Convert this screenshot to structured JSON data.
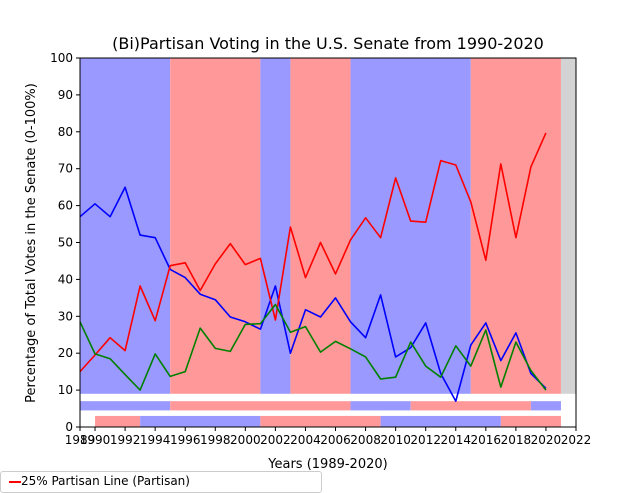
{
  "chart_data": {
    "type": "line",
    "title": "(Bi)Partisan Voting in the U.S. Senate from 1990-2020",
    "xlabel": "Years (1989-2020)",
    "ylabel": "Percentage of Total Votes in the Senate (0-100%)",
    "xlim": [
      1989,
      2022
    ],
    "ylim": [
      0,
      100
    ],
    "xticks": [
      "1989",
      "1990",
      "1992",
      "1994",
      "1996",
      "1998",
      "2000",
      "2002",
      "2004",
      "2006",
      "2008",
      "2010",
      "2012",
      "2014",
      "2016",
      "2018",
      "2020",
      "2022"
    ],
    "yticks": [
      "0",
      "10",
      "20",
      "30",
      "40",
      "50",
      "60",
      "70",
      "80",
      "90",
      "100"
    ],
    "x": [
      1989,
      1990,
      1991,
      1992,
      1993,
      1994,
      1995,
      1996,
      1997,
      1998,
      1999,
      2000,
      2001,
      2002,
      2003,
      2004,
      2005,
      2006,
      2007,
      2008,
      2009,
      2010,
      2011,
      2012,
      2013,
      2014,
      2015,
      2016,
      2017,
      2018,
      2019,
      2020
    ],
    "series": [
      {
        "color": "#0000ff",
        "values": [
          57,
          60.5,
          57,
          65,
          52,
          51.3,
          42.7,
          40.5,
          36,
          34.5,
          29.8,
          28.5,
          26.5,
          38.2,
          20,
          31.8,
          29.8,
          35,
          28.5,
          24.2,
          35.8,
          19,
          21.5,
          28.2,
          14.5,
          7,
          22.2,
          28.2,
          18,
          25.5,
          14.5,
          10.5
        ]
      },
      {
        "color": "#ff0000",
        "values": [
          15,
          19.5,
          24.2,
          20.7,
          38.2,
          28.8,
          43.7,
          44.5,
          37,
          44.2,
          49.7,
          44,
          45.7,
          29,
          54.2,
          40.5,
          50,
          41.5,
          50.7,
          56.7,
          51.3,
          67.5,
          55.8,
          55.5,
          72.2,
          71,
          61,
          45.2,
          71.3,
          51.3,
          70.5,
          79.7
        ]
      },
      {
        "color": "#008000",
        "values": [
          28.5,
          19.8,
          18.5,
          14.2,
          10,
          19.8,
          13.7,
          15,
          26.8,
          21.3,
          20.5,
          27.8,
          28,
          33.2,
          25.7,
          27.2,
          20.3,
          23.2,
          21.2,
          19,
          13,
          13.5,
          23,
          16.5,
          13.5,
          22,
          16.5,
          26.3,
          10.8,
          23,
          15.3,
          10
        ]
      }
    ],
    "bands": [
      {
        "from": 1989,
        "to": 1995,
        "color": "#9999ff"
      },
      {
        "from": 1995,
        "to": 2001,
        "color": "#ff9999"
      },
      {
        "from": 2001,
        "to": 2003,
        "color": "#9999ff"
      },
      {
        "from": 2003,
        "to": 2007,
        "color": "#ff9999"
      },
      {
        "from": 2007,
        "to": 2015,
        "color": "#9999ff"
      },
      {
        "from": 2015,
        "to": 2021,
        "color": "#ff9999"
      },
      {
        "from": 2021,
        "to": 2022,
        "color": "#d3d3d3"
      }
    ],
    "strip_rows": [
      [
        {
          "from": 1989,
          "to": 1995,
          "color": "#9999ff"
        },
        {
          "from": 1995,
          "to": 2007,
          "color": "#ff9999"
        },
        {
          "from": 2007,
          "to": 2011,
          "color": "#9999ff"
        },
        {
          "from": 2011,
          "to": 2019,
          "color": "#ff9999"
        },
        {
          "from": 2019,
          "to": 2021,
          "color": "#9999ff"
        }
      ],
      [
        {
          "from": 1990,
          "to": 1993,
          "color": "#ff9999"
        },
        {
          "from": 1993,
          "to": 2001,
          "color": "#9999ff"
        },
        {
          "from": 2001,
          "to": 2009,
          "color": "#ff9999"
        },
        {
          "from": 2009,
          "to": 2017,
          "color": "#9999ff"
        },
        {
          "from": 2017,
          "to": 2021,
          "color": "#ff9999"
        }
      ]
    ],
    "grid": false
  },
  "legend": {
    "entry_label": "25% Partisan Line (Partisan)",
    "entry_color": "#ff0000"
  }
}
